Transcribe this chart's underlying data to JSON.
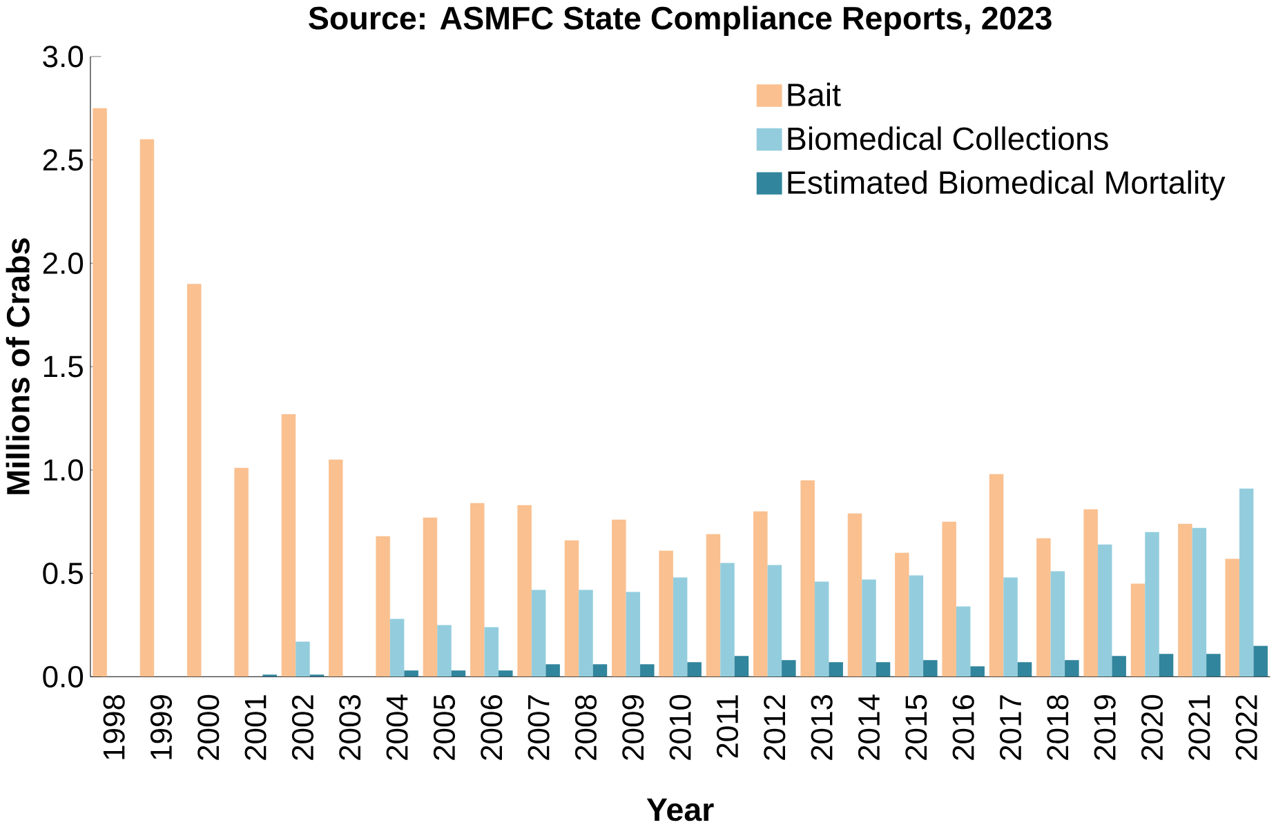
{
  "chart_data": {
    "type": "bar",
    "title": "Source: ASMFC State Compliance Reports, 2023",
    "xlabel": "Year",
    "ylabel": "Millions of Crabs",
    "categories": [
      "1998",
      "1999",
      "2000",
      "2001",
      "2002",
      "2003",
      "2004",
      "2005",
      "2006",
      "2007",
      "2008",
      "2009",
      "2010",
      "2011",
      "2012",
      "2013",
      "2014",
      "2015",
      "2016",
      "2017",
      "2018",
      "2019",
      "2020",
      "2021",
      "2022"
    ],
    "series": [
      {
        "name": "Bait",
        "color": "#fac090",
        "values": [
          2.75,
          2.6,
          1.9,
          1.01,
          1.27,
          1.05,
          0.68,
          0.77,
          0.84,
          0.83,
          0.66,
          0.76,
          0.61,
          0.69,
          0.8,
          0.95,
          0.79,
          0.6,
          0.75,
          0.98,
          0.67,
          0.81,
          0.45,
          0.74,
          0.57
        ]
      },
      {
        "name": "Biomedical Collections",
        "color": "#93cddd",
        "values": [
          null,
          null,
          null,
          null,
          0.17,
          null,
          0.28,
          0.25,
          0.24,
          0.42,
          0.42,
          0.41,
          0.48,
          0.55,
          0.54,
          0.46,
          0.47,
          0.49,
          0.34,
          0.48,
          0.51,
          0.64,
          0.7,
          0.72,
          0.91
        ]
      },
      {
        "name": "Estimated Biomedical Mortality",
        "color": "#31859c",
        "values": [
          null,
          null,
          null,
          0.01,
          0.01,
          null,
          0.03,
          0.03,
          0.03,
          0.06,
          0.06,
          0.06,
          0.07,
          0.1,
          0.08,
          0.07,
          0.07,
          0.08,
          0.05,
          0.07,
          0.08,
          0.1,
          0.11,
          0.11,
          0.15
        ]
      }
    ],
    "ylim": [
      0,
      3
    ],
    "yticks": [
      {
        "value": 0,
        "label": "0.0"
      },
      {
        "value": 0.5,
        "label": "0.5"
      },
      {
        "value": 1,
        "label": "1.0"
      },
      {
        "value": 1.5,
        "label": "1.5"
      },
      {
        "value": 2,
        "label": "2.0"
      },
      {
        "value": 2.5,
        "label": "2.5"
      },
      {
        "value": 3,
        "label": "3.0"
      }
    ],
    "legend": "top right",
    "grid": false
  }
}
